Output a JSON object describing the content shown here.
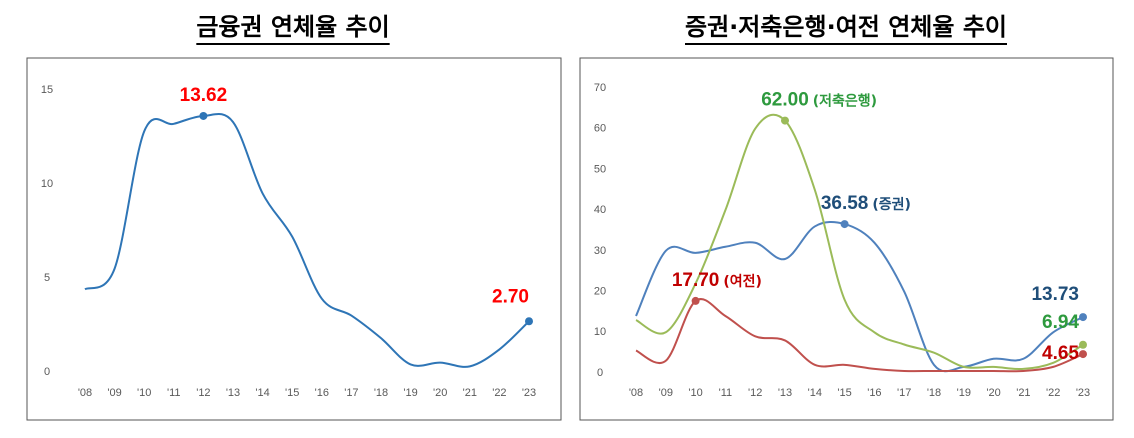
{
  "chart_data": [
    {
      "type": "line",
      "title": "금융권 연체율 추이",
      "categories": [
        "'08",
        "'09",
        "'10",
        "'11",
        "'12",
        "'13",
        "'14",
        "'15",
        "'16",
        "'17",
        "'18",
        "'19",
        "'20",
        "'21",
        "'22",
        "'23"
      ],
      "ylim": [
        0,
        15
      ],
      "yticks": [
        0,
        5,
        10,
        15
      ],
      "series": [
        {
          "color": "#2e75b6",
          "label_color": "#ff0000",
          "values": [
            4.4,
            5.5,
            12.8,
            13.2,
            13.62,
            13.3,
            9.5,
            7.2,
            3.9,
            3.0,
            1.8,
            0.4,
            0.5,
            0.3,
            1.2,
            2.7
          ],
          "value_labels": [
            null,
            null,
            null,
            null,
            "13.62",
            null,
            null,
            null,
            null,
            null,
            null,
            null,
            null,
            null,
            null,
            "2.70"
          ]
        }
      ]
    },
    {
      "type": "line",
      "title": "증권·저축은행·여전 연체율 추이",
      "categories": [
        "'08",
        "'09",
        "'10",
        "'11",
        "'12",
        "'13",
        "'14",
        "'15",
        "'16",
        "'17",
        "'18",
        "'19",
        "'20",
        "'21",
        "'22",
        "'23"
      ],
      "ylim": [
        0,
        70
      ],
      "yticks": [
        0,
        10,
        20,
        30,
        40,
        50,
        60,
        70
      ],
      "series": [
        {
          "name": "(증권)",
          "color": "#4f81bd",
          "label_color": "#1f4e79",
          "values": [
            14,
            30,
            29.5,
            31,
            32,
            28,
            36,
            36.58,
            32,
            20,
            2,
            1.5,
            3.5,
            3.5,
            10,
            13.73
          ],
          "value_labels": [
            null,
            null,
            null,
            null,
            null,
            null,
            null,
            "36.58",
            null,
            null,
            null,
            null,
            null,
            null,
            null,
            "13.73"
          ]
        },
        {
          "name": "(저축은행)",
          "color": "#9bbb59",
          "label_color": "#2e9a3e",
          "values": [
            13,
            10,
            22,
            40,
            60,
            62.0,
            45,
            18,
            10,
            7,
            5,
            1.5,
            1.5,
            1,
            2.5,
            6.94
          ],
          "value_labels": [
            null,
            null,
            null,
            null,
            null,
            "62.00",
            null,
            null,
            null,
            null,
            null,
            null,
            null,
            null,
            null,
            "6.94"
          ]
        },
        {
          "name": "(여전)",
          "color": "#c0504d",
          "label_color": "#c00000",
          "values": [
            5.5,
            3,
            17.7,
            14,
            9,
            8,
            2,
            2,
            1,
            0.5,
            0.5,
            0.5,
            0.5,
            0.5,
            1.5,
            4.65
          ],
          "value_labels": [
            null,
            null,
            "17.70",
            null,
            null,
            null,
            null,
            null,
            null,
            null,
            null,
            null,
            null,
            null,
            null,
            "4.65"
          ]
        }
      ]
    }
  ]
}
